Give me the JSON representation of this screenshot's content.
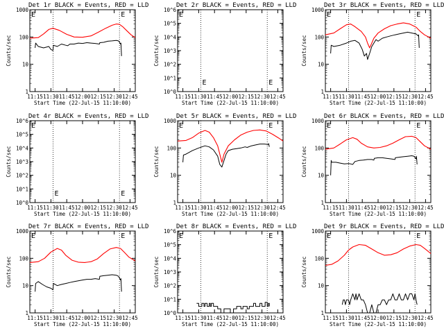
{
  "figure": {
    "ylabel": "Counts/sec",
    "xlabel": "Start Time (22-Jul-15 11:10:00)",
    "time_ticks": [
      "11:15",
      "11:30",
      "11:45",
      "12:00",
      "12:15",
      "12:30",
      "12:45"
    ],
    "marker": "E",
    "colors": {
      "events": "#000000",
      "lld": "#ff0000",
      "axes": "#000000"
    }
  },
  "chart_data": [
    {
      "type": "line",
      "title": "Det 1r BLACK = Events, RED = LLD",
      "yscale": "log",
      "ylim": [
        1,
        1000
      ],
      "xlim_min": [
        0,
        100
      ],
      "yticks": [
        "1",
        "10",
        "100",
        "1000"
      ],
      "event_lines_min": [
        22,
        85
      ],
      "series": [
        {
          "key": "lld",
          "x": [
            0,
            8,
            13,
            18,
            22,
            28,
            35,
            42,
            50,
            58,
            65,
            72,
            78,
            82,
            85,
            88,
            92,
            96,
            100
          ],
          "y": [
            90,
            95,
            130,
            190,
            210,
            175,
            125,
            100,
            98,
            110,
            150,
            210,
            270,
            300,
            290,
            240,
            170,
            120,
            95
          ]
        },
        {
          "key": "events",
          "x": [
            5,
            5.5,
            8,
            13,
            18,
            20,
            22,
            22.4,
            26,
            30,
            34,
            36,
            38,
            42,
            46,
            50,
            54,
            58,
            62,
            66,
            66.4,
            70,
            74,
            78,
            82,
            84,
            85,
            86,
            86.4,
            87
          ],
          "y": [
            40,
            60,
            45,
            40,
            45,
            35,
            32,
            50,
            45,
            55,
            50,
            48,
            55,
            55,
            60,
            58,
            62,
            60,
            58,
            55,
            62,
            64,
            70,
            72,
            75,
            72,
            65,
            55,
            60,
            20
          ]
        }
      ]
    },
    {
      "type": "line",
      "title": "Det 2r BLACK = Events, RED = LLD",
      "yscale": "log",
      "ylim": [
        1,
        1000000
      ],
      "xlim_min": [
        0,
        100
      ],
      "yticks": [
        "10^0",
        "10^1",
        "10^2",
        "10^3",
        "10^4",
        "10^5",
        "10^6"
      ],
      "event_lines_min": [
        22,
        85
      ],
      "series": []
    },
    {
      "type": "line",
      "title": "Det 3r BLACK = Events, RED = LLD",
      "yscale": "log",
      "ylim": [
        1,
        1000
      ],
      "xlim_min": [
        0,
        100
      ],
      "yticks": [
        "1",
        "10",
        "100",
        "1000"
      ],
      "event_lines_min": [
        22,
        85
      ],
      "series": [
        {
          "key": "lld",
          "x": [
            0,
            8,
            14,
            20,
            24,
            28,
            34,
            38,
            40,
            42,
            44,
            46,
            50,
            56,
            62,
            68,
            74,
            80,
            86,
            90,
            94,
            100
          ],
          "y": [
            120,
            140,
            200,
            280,
            300,
            240,
            160,
            100,
            60,
            40,
            60,
            90,
            140,
            200,
            260,
            300,
            330,
            300,
            230,
            160,
            120,
            90
          ]
        },
        {
          "key": "events",
          "x": [
            5,
            5.5,
            8,
            14,
            20,
            24,
            28,
            32,
            35,
            37,
            39,
            40,
            42,
            44,
            46,
            48,
            50,
            54,
            58,
            62,
            66,
            70,
            74,
            78,
            82,
            86,
            88,
            88.4,
            89
          ],
          "y": [
            25,
            50,
            45,
            50,
            60,
            70,
            75,
            60,
            35,
            20,
            25,
            15,
            25,
            45,
            60,
            80,
            70,
            90,
            100,
            110,
            120,
            130,
            140,
            150,
            140,
            130,
            110,
            120,
            40
          ]
        }
      ]
    },
    {
      "type": "line",
      "title": "Det 4r BLACK = Events, RED = LLD",
      "yscale": "log",
      "ylim": [
        1,
        1000000
      ],
      "xlim_min": [
        0,
        100
      ],
      "yticks": [
        "10^0",
        "10^1",
        "10^2",
        "10^3",
        "10^4",
        "10^5",
        "10^6"
      ],
      "event_lines_min": [
        22,
        85
      ],
      "series": []
    },
    {
      "type": "line",
      "title": "Det 5r BLACK = Events, RED = LLD",
      "yscale": "log",
      "ylim": [
        1,
        1000
      ],
      "xlim_min": [
        0,
        100
      ],
      "yticks": [
        "1",
        "10",
        "100",
        "1000"
      ],
      "event_lines_min": [
        22,
        85
      ],
      "series": [
        {
          "key": "lld",
          "x": [
            0,
            8,
            14,
            20,
            26,
            30,
            34,
            38,
            40,
            42,
            44,
            48,
            54,
            60,
            66,
            72,
            78,
            84,
            90,
            96,
            100
          ],
          "y": [
            180,
            190,
            240,
            350,
            440,
            380,
            240,
            120,
            60,
            30,
            60,
            120,
            200,
            300,
            380,
            440,
            460,
            420,
            320,
            230,
            180
          ]
        },
        {
          "key": "events",
          "x": [
            5,
            5.5,
            8,
            14,
            20,
            26,
            30,
            34,
            38,
            40,
            42,
            44,
            46,
            48,
            52,
            56,
            60,
            64,
            66,
            70,
            74,
            78,
            82,
            86,
            86.4,
            87
          ],
          "y": [
            30,
            55,
            60,
            80,
            100,
            120,
            110,
            85,
            50,
            25,
            20,
            35,
            60,
            80,
            90,
            95,
            100,
            110,
            105,
            120,
            130,
            140,
            140,
            135,
            145,
            110
          ]
        }
      ]
    },
    {
      "type": "line",
      "title": "Det 6r BLACK = Events, RED = LLD",
      "yscale": "log",
      "ylim": [
        1,
        1000
      ],
      "xlim_min": [
        0,
        100
      ],
      "yticks": [
        "1",
        "10",
        "100",
        "1000"
      ],
      "event_lines_min": [
        22,
        85
      ],
      "series": [
        {
          "key": "lld",
          "x": [
            0,
            8,
            14,
            20,
            26,
            30,
            34,
            40,
            46,
            52,
            58,
            64,
            70,
            76,
            82,
            86,
            90,
            94,
            100
          ],
          "y": [
            90,
            100,
            140,
            200,
            240,
            210,
            150,
            110,
            100,
            105,
            120,
            150,
            200,
            260,
            270,
            240,
            170,
            120,
            90
          ]
        },
        {
          "key": "events",
          "x": [
            5,
            5.5,
            6,
            10,
            14,
            18,
            22,
            24,
            26,
            28,
            32,
            36,
            40,
            44,
            46,
            46.4,
            50,
            54,
            58,
            62,
            66,
            66.4,
            70,
            74,
            78,
            82,
            84,
            85,
            86,
            86.4,
            87
          ],
          "y": [
            10,
            35,
            30,
            30,
            28,
            26,
            27,
            26,
            25,
            32,
            35,
            36,
            38,
            38,
            36,
            42,
            44,
            44,
            42,
            40,
            38,
            44,
            46,
            48,
            50,
            52,
            50,
            45,
            40,
            50,
            25
          ]
        }
      ]
    },
    {
      "type": "line",
      "title": "Det 7r BLACK = Events, RED = LLD",
      "yscale": "log",
      "ylim": [
        1,
        1000
      ],
      "xlim_min": [
        0,
        100
      ],
      "yticks": [
        "1",
        "10",
        "100",
        "1000"
      ],
      "event_lines_min": [
        22,
        85
      ],
      "series": [
        {
          "key": "lld",
          "x": [
            0,
            8,
            14,
            20,
            26,
            30,
            34,
            40,
            46,
            52,
            58,
            64,
            70,
            76,
            82,
            86,
            90,
            94,
            100
          ],
          "y": [
            70,
            75,
            100,
            170,
            230,
            200,
            130,
            85,
            72,
            70,
            75,
            95,
            150,
            220,
            250,
            230,
            160,
            110,
            80
          ]
        },
        {
          "key": "events",
          "x": [
            5,
            5.5,
            8,
            12,
            16,
            20,
            22,
            22.4,
            26,
            30,
            34,
            38,
            42,
            46,
            50,
            54,
            58,
            62,
            66,
            66.4,
            70,
            74,
            78,
            82,
            84,
            85,
            86,
            86.4,
            87
          ],
          "y": [
            6,
            12,
            14,
            11,
            9,
            8,
            7,
            12,
            10,
            11,
            12,
            13,
            14,
            15,
            16,
            17,
            17,
            18,
            17,
            22,
            23,
            24,
            25,
            24,
            22,
            19,
            16,
            18,
            6
          ]
        }
      ]
    },
    {
      "type": "line",
      "title": "Det 8r BLACK = Events, RED = LLD",
      "yscale": "log",
      "ylim": [
        1,
        1000000
      ],
      "xlim_min": [
        0,
        100
      ],
      "yticks": [
        "10^0",
        "10^1",
        "10^2",
        "10^3",
        "10^4",
        "10^5",
        "10^6"
      ],
      "event_lines_min": [
        22,
        85
      ],
      "series": [
        {
          "key": "events",
          "x": [
            18,
            19,
            20,
            22,
            23,
            24,
            25,
            26,
            27,
            28,
            30,
            31,
            32,
            33,
            34,
            36,
            38,
            40,
            41,
            42,
            44,
            46,
            48,
            50,
            52,
            53,
            54,
            56,
            58,
            60,
            62,
            64,
            66,
            68,
            70,
            72,
            74,
            76,
            78,
            80,
            82,
            83,
            84,
            85,
            86,
            87
          ],
          "y": [
            5,
            5,
            3,
            3,
            5,
            5,
            3,
            5,
            5,
            3,
            5,
            3,
            5,
            5,
            3,
            3,
            2,
            2,
            1,
            1,
            2,
            2,
            2,
            1,
            1,
            2,
            2,
            3,
            3,
            2,
            3,
            3,
            2,
            3,
            3,
            5,
            3,
            3,
            5,
            3,
            3,
            6,
            6,
            3,
            5,
            3
          ]
        }
      ]
    },
    {
      "type": "line",
      "title": "Det 9r BLACK = Events, RED = LLD",
      "yscale": "log",
      "ylim": [
        1,
        1000
      ],
      "xlim_min": [
        0,
        100
      ],
      "yticks": [
        "1",
        "10",
        "100",
        "1000"
      ],
      "event_lines_min": [
        22,
        85
      ],
      "series": [
        {
          "key": "lld",
          "x": [
            0,
            6,
            12,
            18,
            22,
            26,
            32,
            38,
            44,
            50,
            56,
            62,
            68,
            74,
            80,
            86,
            90,
            94,
            100
          ],
          "y": [
            55,
            60,
            80,
            130,
            200,
            260,
            320,
            300,
            220,
            160,
            130,
            135,
            160,
            220,
            280,
            320,
            300,
            230,
            150
          ]
        },
        {
          "key": "events",
          "x": [
            16,
            17,
            18,
            19,
            20,
            22,
            23,
            24,
            26,
            28,
            29,
            30,
            32,
            34,
            36,
            38,
            40,
            42,
            44,
            46,
            48,
            50,
            52,
            54,
            56,
            58,
            60,
            62,
            64,
            66,
            68,
            70,
            72,
            74,
            76,
            78,
            80,
            82,
            84,
            85,
            86,
            87
          ],
          "y": [
            2,
            3,
            3,
            2,
            3,
            3,
            2,
            3,
            5,
            3,
            5,
            3,
            5,
            3,
            3,
            2,
            1,
            1,
            2,
            1,
            1,
            2,
            2,
            3,
            3,
            2,
            3,
            3,
            5,
            3,
            3,
            5,
            3,
            3,
            5,
            3,
            5,
            5,
            3,
            5,
            3,
            2
          ]
        }
      ]
    }
  ]
}
